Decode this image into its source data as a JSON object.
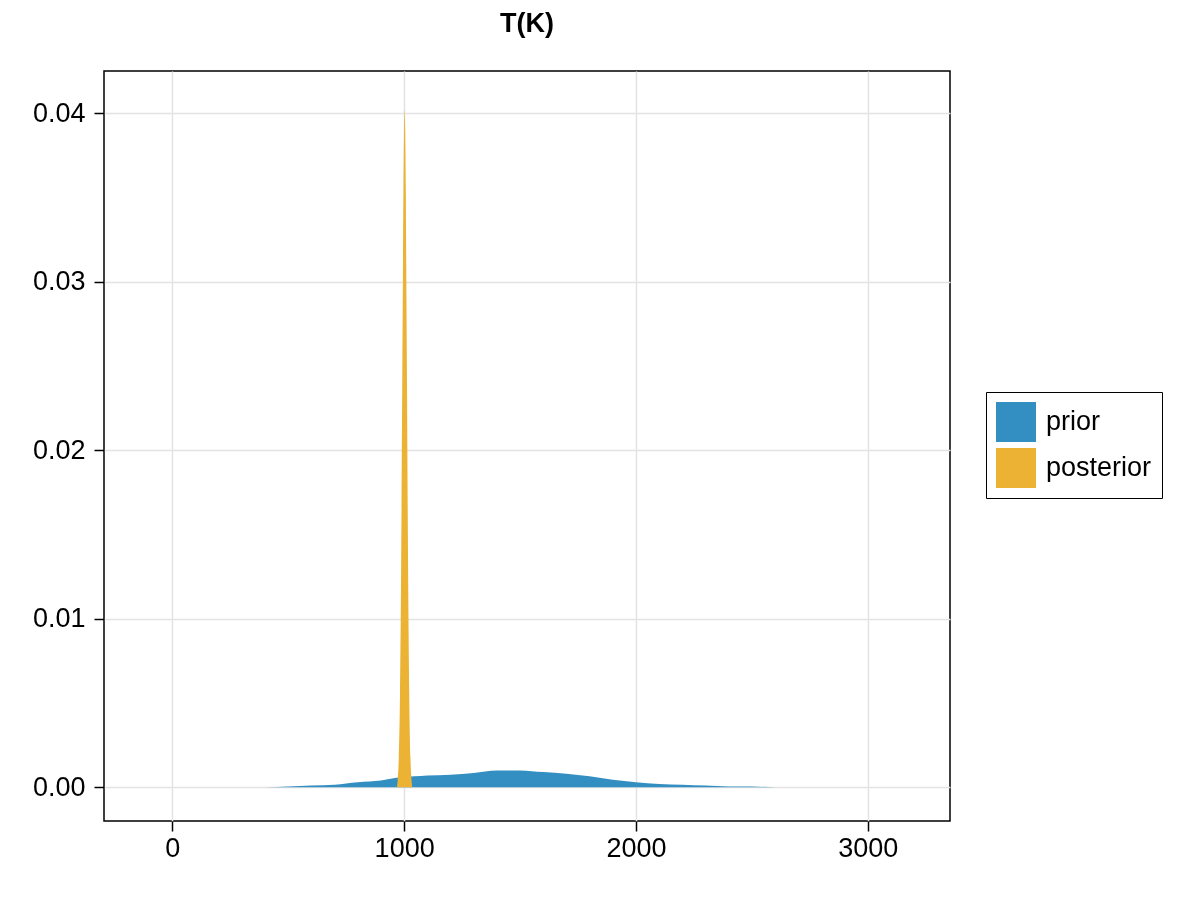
{
  "chart_data": {
    "type": "area",
    "title": "T(K)",
    "xlim": [
      -295,
      3355
    ],
    "xticks": [
      0,
      1000,
      2000,
      3000
    ],
    "ylim": [
      -0.002,
      0.0425
    ],
    "yticks": [
      {
        "value": 0,
        "label": "0.00"
      },
      0.01,
      0.02,
      0.03,
      0.04
    ],
    "grid": true,
    "legend": "right",
    "series": [
      {
        "name": "prior",
        "color": "#338ec1",
        "x": [
          -129,
          0,
          200,
          400,
          500,
          600,
          700,
          800,
          900,
          960,
          1045,
          1100,
          1200,
          1300,
          1400,
          1500,
          1600,
          1700,
          1800,
          1900,
          2000,
          2100,
          2200,
          2300,
          2400,
          2500,
          2600,
          2800,
          3000,
          3189
        ],
        "values": [
          0,
          0,
          0,
          0,
          5e-05,
          0.0001,
          0.00015,
          0.0003,
          0.0004,
          0.00055,
          0.00065,
          0.0007,
          0.00075,
          0.00085,
          0.001,
          0.001,
          0.0009,
          0.0008,
          0.00065,
          0.00045,
          0.0003,
          0.0002,
          0.00015,
          0.0001,
          5e-05,
          5e-05,
          0,
          0,
          0,
          0
        ]
      },
      {
        "name": "posterior",
        "color": "#ebb233",
        "x": [
          969,
          972,
          977,
          982,
          987,
          992,
          994.5,
          997,
          999.5,
          1002,
          1004.5,
          1007,
          1009.5,
          1012,
          1017,
          1022,
          1027,
          1032,
          1035
        ],
        "values": [
          0,
          0.0004,
          0.0018,
          0.0054,
          0.013,
          0.0244,
          0.03,
          0.0355,
          0.0389,
          0.0402,
          0.0389,
          0.0355,
          0.03,
          0.0244,
          0.013,
          0.0054,
          0.0018,
          0.0004,
          0
        ]
      }
    ]
  }
}
